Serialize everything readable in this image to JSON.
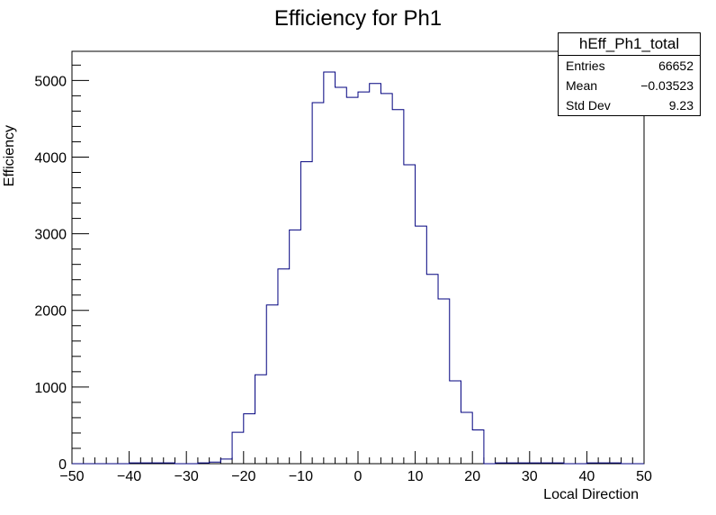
{
  "chart_data": {
    "type": "bar",
    "style": "step-histogram",
    "title": "Efficiency for Ph1",
    "xlabel": "Local Direction",
    "ylabel": "Efficiency",
    "xlim": [
      -50,
      50
    ],
    "ylim": [
      0,
      5380
    ],
    "xticks": [
      -50,
      -40,
      -30,
      -20,
      -10,
      0,
      10,
      20,
      30,
      40,
      50
    ],
    "yticks": [
      0,
      1000,
      2000,
      3000,
      4000,
      5000
    ],
    "bin_edges": [
      -50,
      -48,
      -46,
      -44,
      -42,
      -40,
      -38,
      -36,
      -34,
      -32,
      -30,
      -28,
      -26,
      -24,
      -22,
      -20,
      -18,
      -16,
      -14,
      -12,
      -10,
      -8,
      -6,
      -4,
      -2,
      0,
      2,
      4,
      6,
      8,
      10,
      12,
      14,
      16,
      18,
      20,
      22,
      24,
      26,
      28,
      30,
      32,
      34,
      36,
      38,
      40,
      42,
      44,
      46,
      48,
      50
    ],
    "values": [
      0,
      0,
      0,
      0,
      0,
      10,
      10,
      10,
      10,
      0,
      0,
      10,
      20,
      60,
      410,
      650,
      1160,
      2070,
      2540,
      3050,
      3940,
      4710,
      5110,
      4910,
      4780,
      4850,
      4960,
      4830,
      4620,
      3900,
      3100,
      2470,
      2150,
      1080,
      670,
      440,
      0,
      10,
      10,
      10,
      10,
      10,
      10,
      0,
      0,
      10,
      10,
      10,
      0,
      0
    ],
    "line_color": "#00007f",
    "grid": false,
    "legend": "top-right",
    "stats_box": {
      "title": "hEff_Ph1_total",
      "entries_label": "Entries",
      "entries": "66652",
      "mean_label": "Mean",
      "mean": "−0.03523",
      "stddev_label": "Std Dev",
      "stddev": "9.23"
    }
  }
}
